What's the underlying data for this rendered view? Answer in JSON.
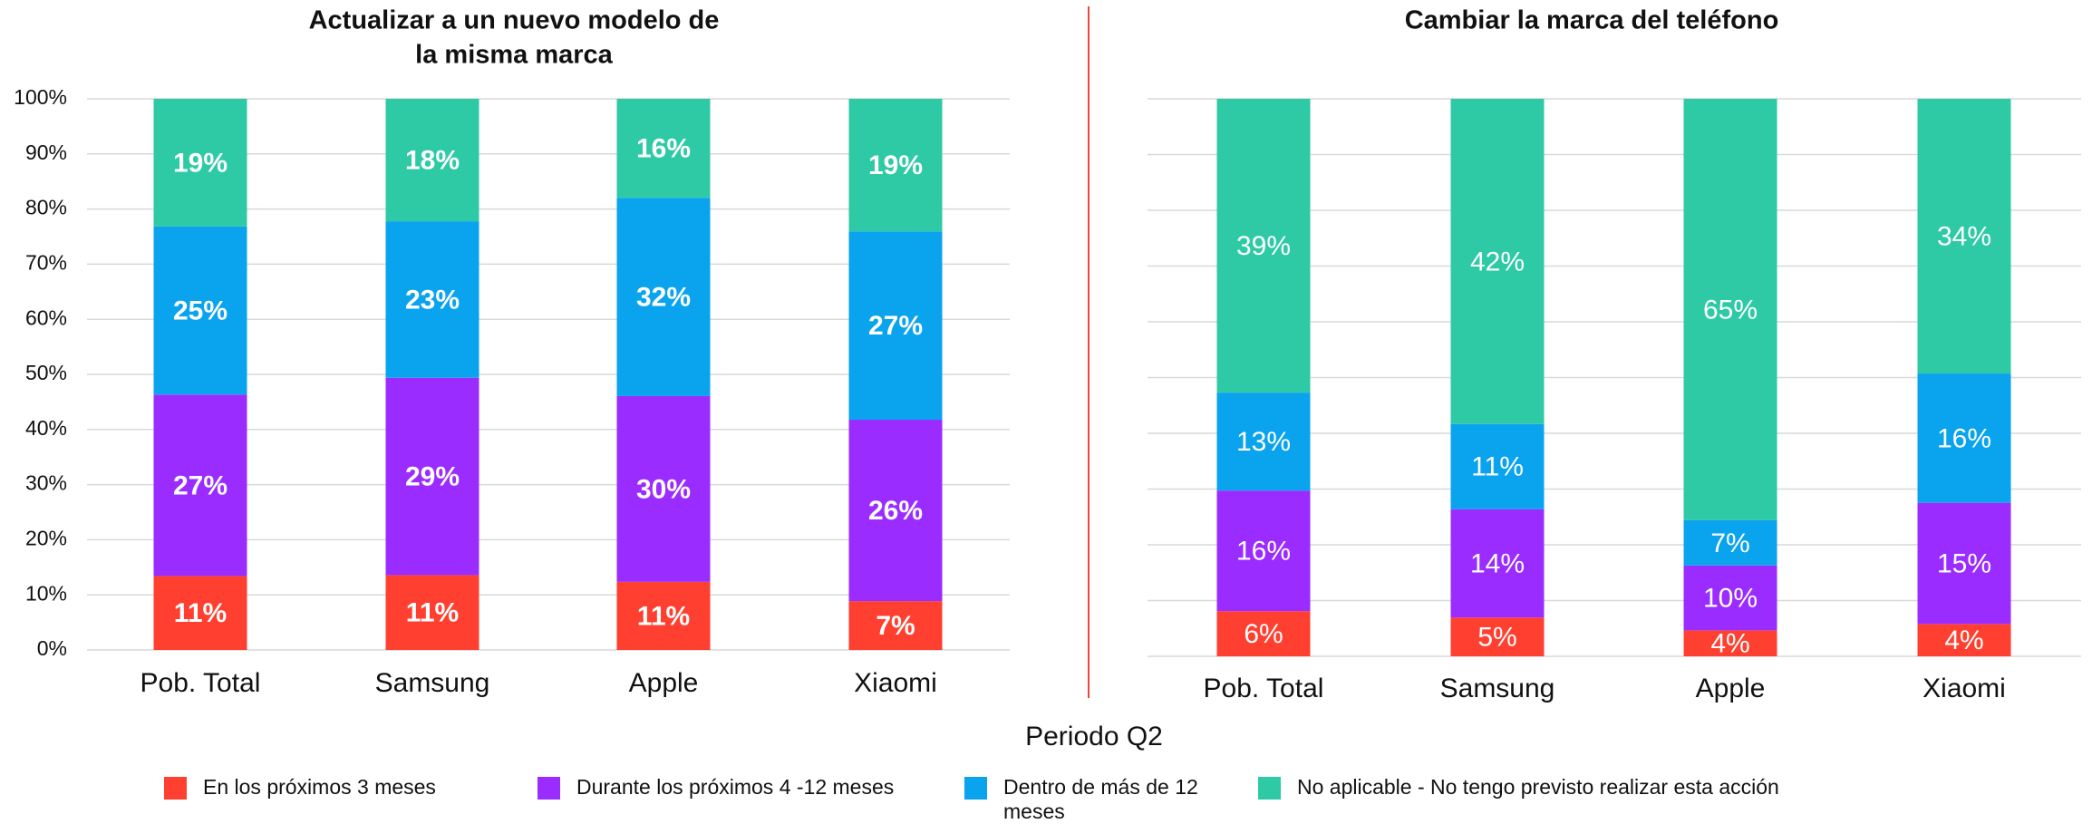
{
  "x_label": "Periodo Q2",
  "chart_data": [
    {
      "type": "stacked_bar_100",
      "title": [
        "Actualizar a un nuevo modelo de",
        "la misma marca"
      ],
      "categories": [
        "Pob. Total",
        "Samsung",
        "Apple",
        "Xiaomi"
      ],
      "series": [
        {
          "name": "En los próximos 3 meses",
          "color": "#ff3f2f",
          "values": [
            11,
            11,
            11,
            7
          ],
          "value_labels": [
            "11%",
            "11%",
            "11%",
            "7%"
          ]
        },
        {
          "name": "Durante los próximos 4 -12 meses",
          "color": "#9b2cff",
          "values": [
            27,
            29,
            30,
            26
          ],
          "value_labels": [
            "27%",
            "29%",
            "30%",
            "26%"
          ]
        },
        {
          "name": "Dentro de más de 12 meses",
          "color": "#0aa3ee",
          "values": [
            25,
            23,
            32,
            27
          ],
          "value_labels": [
            "25%",
            "23%",
            "32%",
            "27%"
          ]
        },
        {
          "name": "No aplicable - No tengo previsto realizar esta acción",
          "color": "#2ecaa6",
          "values": [
            19,
            18,
            16,
            19
          ],
          "value_labels": [
            "19%",
            "18%",
            "16%",
            "19%"
          ]
        }
      ],
      "ylim": [
        0,
        100
      ],
      "yticks": [
        {
          "value": 0,
          "label": "0%"
        },
        {
          "value": 10,
          "label": "10%"
        },
        {
          "value": 20,
          "label": "20%"
        },
        {
          "value": 30,
          "label": "30%"
        },
        {
          "value": 40,
          "label": "40%"
        },
        {
          "value": 50,
          "label": "50%"
        },
        {
          "value": 60,
          "label": "60%"
        },
        {
          "value": 70,
          "label": "70%"
        },
        {
          "value": 80,
          "label": "80%"
        },
        {
          "value": 90,
          "label": "90%"
        },
        {
          "value": 100,
          "label": "100%"
        }
      ],
      "grid": true,
      "label_bold": true
    },
    {
      "type": "stacked_bar_100",
      "title": [
        "Cambiar la marca del teléfono"
      ],
      "categories": [
        "Pob. Total",
        "Samsung",
        "Apple",
        "Xiaomi"
      ],
      "series": [
        {
          "name": "En los próximos 3 meses",
          "color": "#ff3f2f",
          "values": [
            6,
            5,
            4,
            4
          ],
          "value_labels": [
            "6%",
            "5%",
            "4%",
            "4%"
          ]
        },
        {
          "name": "Durante los próximos 4 -12 meses",
          "color": "#9b2cff",
          "values": [
            16,
            14,
            10,
            15
          ],
          "value_labels": [
            "16%",
            "14%",
            "10%",
            "15%"
          ]
        },
        {
          "name": "Dentro de más de 12 meses",
          "color": "#0aa3ee",
          "values": [
            13,
            11,
            7,
            16
          ],
          "value_labels": [
            "13%",
            "11%",
            "7%",
            "16%"
          ]
        },
        {
          "name": "No aplicable - No tengo previsto realizar esta acción",
          "color": "#2ecaa6",
          "values": [
            39,
            42,
            65,
            34
          ],
          "value_labels": [
            "39%",
            "42%",
            "65%",
            "34%"
          ]
        }
      ],
      "ylim": [
        0,
        100
      ],
      "yticks": [
        0,
        10,
        20,
        30,
        40,
        50,
        60,
        70,
        80,
        90,
        100
      ],
      "grid": true,
      "ytick_labels": false,
      "label_bold": false
    }
  ]
}
